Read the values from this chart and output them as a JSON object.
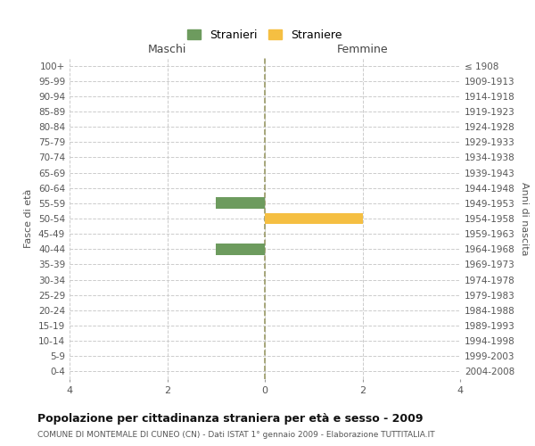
{
  "age_groups": [
    "0-4",
    "5-9",
    "10-14",
    "15-19",
    "20-24",
    "25-29",
    "30-34",
    "35-39",
    "40-44",
    "45-49",
    "50-54",
    "55-59",
    "60-64",
    "65-69",
    "70-74",
    "75-79",
    "80-84",
    "85-89",
    "90-94",
    "95-99",
    "100+"
  ],
  "birth_years": [
    "2004-2008",
    "1999-2003",
    "1994-1998",
    "1989-1993",
    "1984-1988",
    "1979-1983",
    "1974-1978",
    "1969-1973",
    "1964-1968",
    "1959-1963",
    "1954-1958",
    "1949-1953",
    "1944-1948",
    "1939-1943",
    "1934-1938",
    "1929-1933",
    "1924-1928",
    "1919-1923",
    "1914-1918",
    "1909-1913",
    "≤ 1908"
  ],
  "males": [
    0,
    0,
    0,
    0,
    0,
    0,
    0,
    0,
    1,
    0,
    0,
    1,
    0,
    0,
    0,
    0,
    0,
    0,
    0,
    0,
    0
  ],
  "females": [
    0,
    0,
    0,
    0,
    0,
    0,
    0,
    0,
    0,
    0,
    2,
    0,
    0,
    0,
    0,
    0,
    0,
    0,
    0,
    0,
    0
  ],
  "male_color": "#6d9b5e",
  "female_color": "#f5bf42",
  "xlim": [
    -4,
    4
  ],
  "xticks": [
    -4,
    -2,
    0,
    2,
    4
  ],
  "xticklabels": [
    "4",
    "2",
    "0",
    "2",
    "4"
  ],
  "title": "Popolazione per cittadinanza straniera per età e sesso - 2009",
  "subtitle": "COMUNE DI MONTEMALE DI CUNEO (CN) - Dati ISTAT 1° gennaio 2009 - Elaborazione TUTTITALIA.IT",
  "ylabel_left": "Fasce di età",
  "ylabel_right": "Anni di nascita",
  "label_maschi": "Maschi",
  "label_femmine": "Femmine",
  "legend_stranieri": "Stranieri",
  "legend_straniere": "Straniere",
  "bg_color": "#ffffff",
  "grid_color": "#cccccc",
  "center_line_color": "#999966"
}
